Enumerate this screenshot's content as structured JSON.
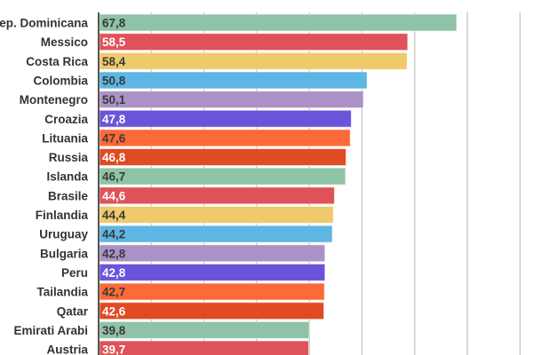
{
  "chart_data": {
    "type": "bar",
    "orientation": "horizontal",
    "categories": [
      "Rep. Dominicana",
      "Messico",
      "Costa Rica",
      "Colombia",
      "Montenegro",
      "Croazia",
      "Lituania",
      "Russia",
      "Islanda",
      "Brasile",
      "Finlandia",
      "Uruguay",
      "Bulgaria",
      "Peru",
      "Tailandia",
      "Qatar",
      "Emirati Arabi",
      "Austria"
    ],
    "values": [
      67.8,
      58.5,
      58.4,
      50.8,
      50.1,
      47.8,
      47.6,
      46.8,
      46.7,
      44.6,
      44.4,
      44.2,
      42.8,
      42.8,
      42.7,
      42.6,
      39.8,
      39.7
    ],
    "value_labels": [
      "67,8",
      "58,5",
      "58,4",
      "50,8",
      "50,1",
      "47,8",
      "47,6",
      "46,8",
      "46,7",
      "44,6",
      "44,4",
      "44,2",
      "42,8",
      "42,8",
      "42,7",
      "42,6",
      "39,8",
      "39,7"
    ],
    "bar_colors": [
      "#8fc3a5",
      "#de5359",
      "#eeca6b",
      "#5db6e3",
      "#ab92c6",
      "#6c53db",
      "#fc6a37",
      "#e04b24",
      "#8fc3a5",
      "#de5359",
      "#eeca6b",
      "#5db6e3",
      "#ab92c6",
      "#6c53db",
      "#fc6a37",
      "#e04b24",
      "#8fc3a5",
      "#de5359"
    ],
    "label_colors": [
      "#3a3a3a",
      "#ffffff",
      "#3a3a3a",
      "#3a3a3a",
      "#3a3a3a",
      "#ffffff",
      "#3a3a3a",
      "#ffffff",
      "#3a3a3a",
      "#ffffff",
      "#3a3a3a",
      "#3a3a3a",
      "#3a3a3a",
      "#ffffff",
      "#3a3a3a",
      "#ffffff",
      "#3a3a3a",
      "#ffffff"
    ],
    "xlim": [
      0,
      80
    ],
    "grid_step": 10,
    "grid": true,
    "title": "",
    "xlabel": "",
    "ylabel": ""
  }
}
